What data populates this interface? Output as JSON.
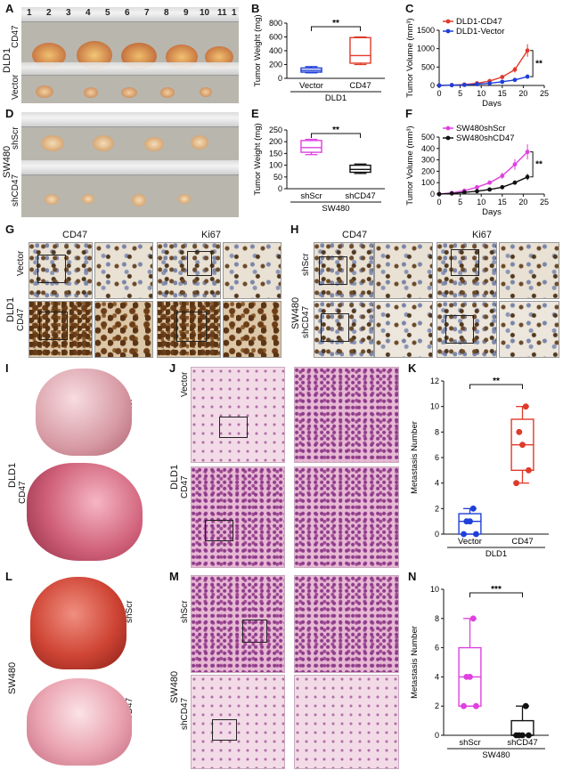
{
  "panels": [
    "A",
    "B",
    "C",
    "D",
    "E",
    "F",
    "G",
    "H",
    "I",
    "J",
    "K",
    "L",
    "M",
    "N"
  ],
  "photo_labels": {
    "dld1": "DLD1",
    "cd47": "CD47",
    "vector": "Vector",
    "sw480": "SW480",
    "shscr": "shScr",
    "shcd47": "shCD47"
  },
  "ruler_numbers": [
    "1",
    "2",
    "3",
    "4",
    "5",
    "6",
    "7",
    "8",
    "9",
    "10",
    "11",
    "1"
  ],
  "ihc_headers": {
    "cd47": "CD47",
    "ki67": "Ki67"
  },
  "chart_data": [
    {
      "id": "B",
      "type": "box",
      "categories": [
        "Vector",
        "CD47"
      ],
      "xgroup": "DLD1",
      "ylabel": "Tumor Weight (mg)",
      "ylim": [
        0,
        800
      ],
      "yticks": [
        0,
        200,
        400,
        600,
        800
      ],
      "boxes": [
        {
          "name": "Vector",
          "min": 80,
          "q1": 90,
          "median": 115,
          "q3": 150,
          "max": 170,
          "color": "#1f3fd8"
        },
        {
          "name": "CD47",
          "min": 200,
          "q1": 220,
          "median": 330,
          "q3": 590,
          "max": 600,
          "color": "#e03a2a"
        }
      ],
      "significance": "**"
    },
    {
      "id": "C",
      "type": "line",
      "xlabel": "Days",
      "ylabel": "Tumor Volume (mm³)",
      "xlim": [
        0,
        25
      ],
      "xticks": [
        0,
        5,
        10,
        15,
        20,
        25
      ],
      "ylim": [
        0,
        1500
      ],
      "yticks": [
        0,
        500,
        1000,
        1500
      ],
      "x": [
        0,
        3,
        6,
        9,
        12,
        15,
        18,
        21
      ],
      "series": [
        {
          "name": "DLD1-CD47",
          "values": [
            0,
            10,
            25,
            60,
            120,
            230,
            430,
            950
          ],
          "color": "#e03a2a"
        },
        {
          "name": "DLD1-Vector",
          "values": [
            0,
            8,
            15,
            35,
            60,
            100,
            150,
            240
          ],
          "color": "#1f3fd8"
        }
      ],
      "significance": "**"
    },
    {
      "id": "E",
      "type": "box",
      "categories": [
        "shScr",
        "shCD47"
      ],
      "xgroup": "SW480",
      "ylabel": "Tumor Weight (mg)",
      "ylim": [
        0,
        250
      ],
      "yticks": [
        0,
        50,
        100,
        150,
        200,
        250
      ],
      "boxes": [
        {
          "name": "shScr",
          "min": 145,
          "q1": 155,
          "median": 175,
          "q3": 205,
          "max": 210,
          "color": "#e040e0"
        },
        {
          "name": "shCD47",
          "min": 65,
          "q1": 70,
          "median": 82,
          "q3": 100,
          "max": 105,
          "color": "#111111"
        }
      ],
      "significance": "**"
    },
    {
      "id": "F",
      "type": "line",
      "xlabel": "Days",
      "ylabel": "Tumor Volume (mm³)",
      "xlim": [
        0,
        25
      ],
      "xticks": [
        0,
        5,
        10,
        15,
        20,
        25
      ],
      "ylim": [
        0,
        500
      ],
      "yticks": [
        0,
        100,
        200,
        300,
        400,
        500
      ],
      "x": [
        0,
        3,
        6,
        9,
        12,
        15,
        18,
        21
      ],
      "series": [
        {
          "name": "SW480shScr",
          "values": [
            0,
            10,
            30,
            60,
            100,
            160,
            260,
            370
          ],
          "color": "#e040e0"
        },
        {
          "name": "SW480shCD47",
          "values": [
            0,
            5,
            15,
            25,
            40,
            60,
            100,
            150
          ],
          "color": "#111111"
        }
      ],
      "significance": "**"
    },
    {
      "id": "K",
      "type": "box_scatter",
      "categories": [
        "Vector",
        "CD47"
      ],
      "xgroup": "DLD1",
      "ylabel": "Metastasis Number",
      "ylim": [
        0,
        12
      ],
      "yticks": [
        0,
        2,
        4,
        6,
        8,
        10,
        12
      ],
      "boxes": [
        {
          "name": "Vector",
          "min": 0,
          "q1": 0,
          "median": 1,
          "q3": 1.6,
          "max": 2,
          "color": "#1f3fd8",
          "points": [
            0,
            0,
            1,
            1,
            2
          ]
        },
        {
          "name": "CD47",
          "min": 4,
          "q1": 5,
          "median": 7,
          "q3": 9,
          "max": 10,
          "color": "#e03a2a",
          "points": [
            4,
            5,
            7,
            8,
            10
          ]
        }
      ],
      "significance": "**"
    },
    {
      "id": "N",
      "type": "box_scatter",
      "categories": [
        "shScr",
        "shCD47"
      ],
      "xgroup": "SW480",
      "ylabel": "Metastasis Number",
      "ylim": [
        0,
        10
      ],
      "yticks": [
        0,
        2,
        4,
        6,
        8,
        10
      ],
      "boxes": [
        {
          "name": "shScr",
          "min": 2,
          "q1": 2,
          "median": 4,
          "q3": 6,
          "max": 8,
          "color": "#e040e0",
          "points": [
            2,
            2,
            4,
            4,
            8
          ]
        },
        {
          "name": "shCD47",
          "min": 0,
          "q1": 0,
          "median": 0,
          "q3": 1,
          "max": 2,
          "color": "#111111",
          "points": [
            0,
            0,
            0,
            0,
            2
          ]
        }
      ],
      "significance": "***"
    }
  ]
}
